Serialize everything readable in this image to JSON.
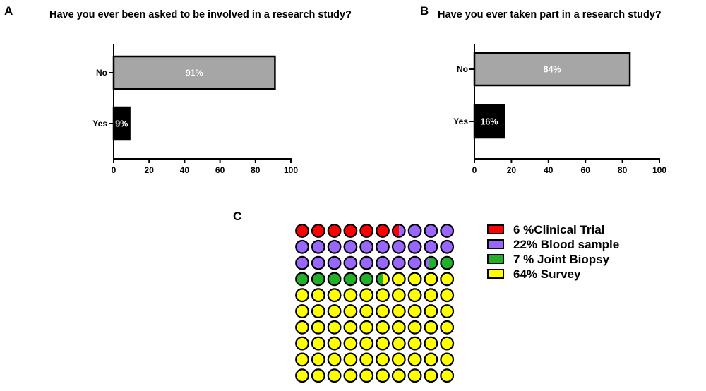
{
  "panels": {
    "a": "A",
    "b": "B",
    "c": "C"
  },
  "chart_data": [
    {
      "type": "bar",
      "orientation": "horizontal",
      "title": "Have you ever been asked to be involved in a research study?",
      "categories": [
        "No",
        "Yes"
      ],
      "values": [
        91,
        9
      ],
      "data_labels": [
        "91%",
        "9%"
      ],
      "colors": [
        "#a6a6a6",
        "#000000"
      ],
      "xlim": [
        0,
        100
      ],
      "xticks": [
        0,
        20,
        40,
        60,
        80,
        100
      ],
      "grid": false
    },
    {
      "type": "bar",
      "orientation": "horizontal",
      "title": "Have you ever taken part in a research study?",
      "categories": [
        "No",
        "Yes"
      ],
      "values": [
        84,
        16
      ],
      "data_labels": [
        "84%",
        "16%"
      ],
      "colors": [
        "#a6a6a6",
        "#000000"
      ],
      "xlim": [
        0,
        100
      ],
      "xticks": [
        0,
        20,
        40,
        60,
        80,
        100
      ],
      "grid": false
    },
    {
      "type": "waffle",
      "grid": [
        10,
        10
      ],
      "series": [
        {
          "name": "Clinical Trial",
          "label": "6 %Clinical Trial",
          "value": 6.5,
          "color": "#ff0000"
        },
        {
          "name": "Blood sample",
          "label": "22% Blood sample",
          "value": 21.8,
          "color": "#9966ff"
        },
        {
          "name": "Joint Biopsy",
          "label": "7 % Joint Biopsy",
          "value": 7.2,
          "color": "#22b02a"
        },
        {
          "name": "Survey",
          "label": "64% Survey",
          "value": 64.5,
          "color": "#ffff00"
        }
      ],
      "legend_position": "right"
    }
  ]
}
